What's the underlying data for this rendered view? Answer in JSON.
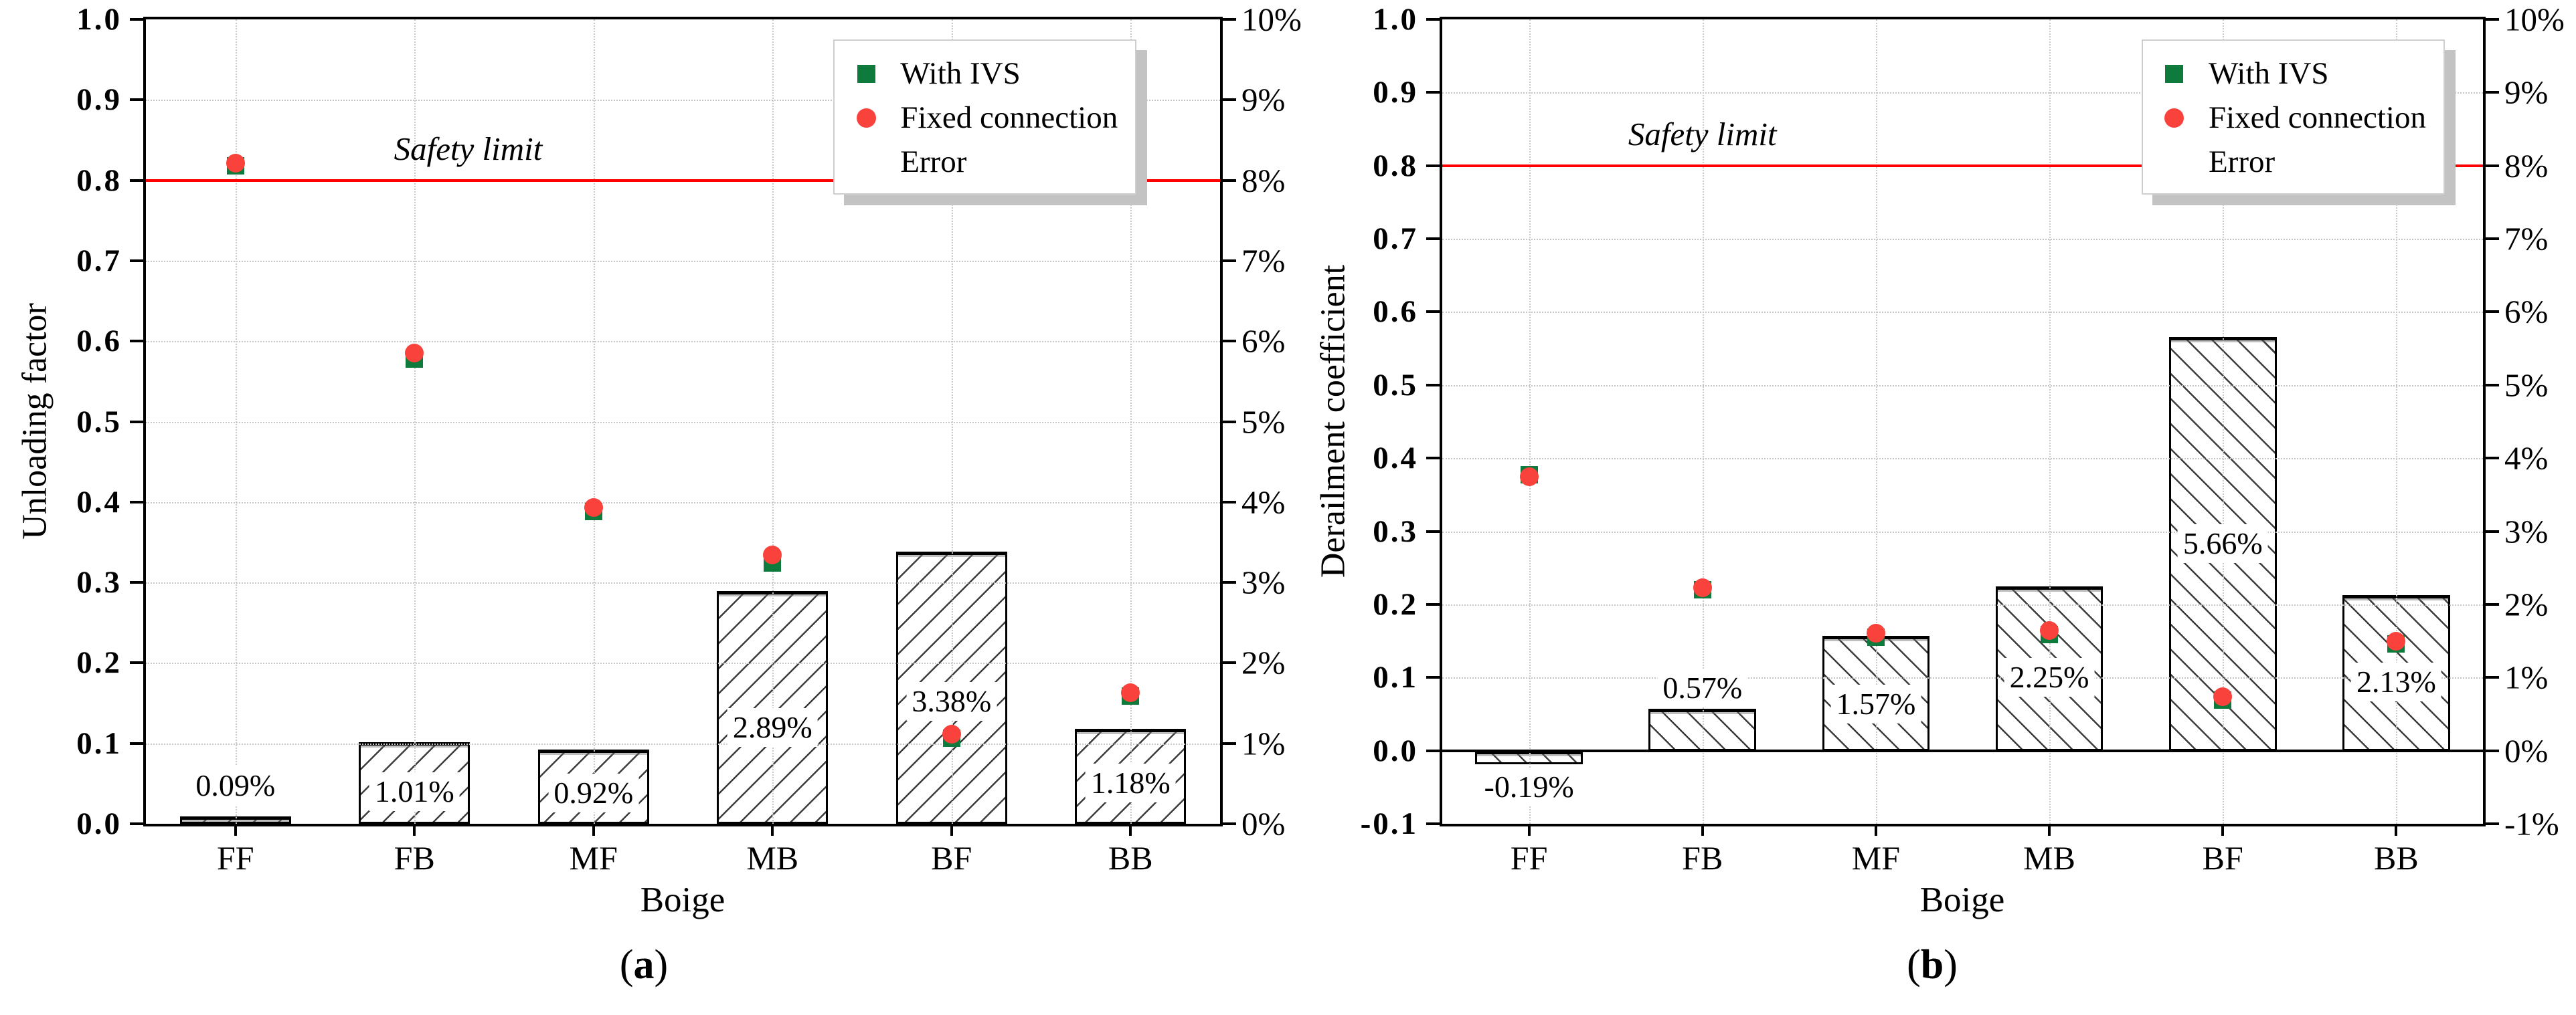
{
  "colors": {
    "with_ivs_green": "#0e7b3c",
    "fixed_connection_red": "#f8423b",
    "safety_line_red": "#ff0000",
    "grid_gray": "#c8c8c8",
    "hatch_gray": "#3c3c3c",
    "legend_shadow_gray": "#c3c3c3"
  },
  "legend": {
    "items": [
      {
        "label": "With IVS",
        "marker": "square",
        "color": "#0e7b3c"
      },
      {
        "label": "Fixed connection",
        "marker": "circle",
        "color": "#f8423b"
      },
      {
        "label": "Error",
        "marker": "none",
        "color": ""
      }
    ]
  },
  "chart_data": [
    {
      "type": "bar+scatter",
      "panel": "a",
      "title": "(a)",
      "xlabel": "Boige",
      "ylabel": "Unloading factor",
      "categories": [
        "FF",
        "FB",
        "MF",
        "MB",
        "BF",
        "BB"
      ],
      "ylim": [
        0.0,
        1.0
      ],
      "left_tick_values": [
        1.0,
        0.9,
        0.8,
        0.7,
        0.6,
        0.5,
        0.4,
        0.3,
        0.2,
        0.1,
        0.0
      ],
      "left_tick_labels": [
        "1.0",
        "0.9",
        "0.8",
        "0.7",
        "0.6",
        "0.5",
        "0.4",
        "0.3",
        "0.2",
        "0.1",
        "0.0"
      ],
      "right_ylim_pct": [
        0,
        10
      ],
      "right_tick_labels": [
        "10%",
        "9%",
        "8%",
        "7%",
        "6%",
        "5%",
        "4%",
        "3%",
        "2%",
        "1%",
        "0%"
      ],
      "grid": true,
      "legend_position": "top-right",
      "safety_limit": {
        "label": "Safety limit",
        "value": 0.8
      },
      "zero_line": false,
      "hatch_direction": "forward-slash",
      "series": [
        {
          "name": "With IVS",
          "type": "scatter",
          "marker": "square",
          "values": [
            0.818,
            0.578,
            0.388,
            0.324,
            0.106,
            0.159
          ]
        },
        {
          "name": "Fixed connection",
          "type": "scatter",
          "marker": "circle",
          "values": [
            0.821,
            0.585,
            0.393,
            0.334,
            0.111,
            0.163
          ]
        },
        {
          "name": "Error",
          "type": "bar",
          "axis": "right-percent",
          "values_pct": [
            0.09,
            1.01,
            0.92,
            2.89,
            3.38,
            1.18
          ],
          "labels": [
            "0.09%",
            "1.01%",
            "0.92%",
            "2.89%",
            "3.38%",
            "1.18%"
          ],
          "label_y": [
            0.047,
            0.04,
            0.038,
            0.12,
            0.152,
            0.051
          ]
        }
      ]
    },
    {
      "type": "bar+scatter",
      "panel": "b",
      "title": "(b)",
      "xlabel": "Boige",
      "ylabel": "Derailment coefficient",
      "categories": [
        "FF",
        "FB",
        "MF",
        "MB",
        "BF",
        "BB"
      ],
      "ylim": [
        -0.1,
        1.0
      ],
      "left_tick_values": [
        1.0,
        0.9,
        0.8,
        0.7,
        0.6,
        0.5,
        0.4,
        0.3,
        0.2,
        0.1,
        0.0,
        -0.1
      ],
      "left_tick_labels": [
        "1.0",
        "0.9",
        "0.8",
        "0.7",
        "0.6",
        "0.5",
        "0.4",
        "0.3",
        "0.2",
        "0.1",
        "0.0",
        "-0.1"
      ],
      "right_ylim_pct": [
        -1,
        10
      ],
      "right_tick_labels": [
        "10%",
        "9%",
        "8%",
        "7%",
        "6%",
        "5%",
        "4%",
        "3%",
        "2%",
        "1%",
        "0%",
        "-1%"
      ],
      "grid": true,
      "legend_position": "top-right",
      "safety_limit": {
        "label": "Safety limit",
        "value": 0.8
      },
      "zero_line": true,
      "hatch_direction": "back-slash",
      "series": [
        {
          "name": "With IVS",
          "type": "scatter",
          "marker": "square",
          "values": [
            0.377,
            0.22,
            0.155,
            0.159,
            0.069,
            0.146
          ]
        },
        {
          "name": "Fixed connection",
          "type": "scatter",
          "marker": "circle",
          "values": [
            0.375,
            0.223,
            0.161,
            0.164,
            0.074,
            0.15
          ]
        },
        {
          "name": "Error",
          "type": "bar",
          "axis": "right-percent",
          "values_pct": [
            -0.19,
            0.57,
            1.57,
            2.25,
            5.66,
            2.13
          ],
          "labels": [
            "-0.19%",
            "0.57%",
            "1.57%",
            "2.25%",
            "5.66%",
            "2.13%"
          ],
          "label_y": [
            -0.05,
            0.086,
            0.064,
            0.1,
            0.283,
            0.094
          ]
        }
      ]
    }
  ]
}
